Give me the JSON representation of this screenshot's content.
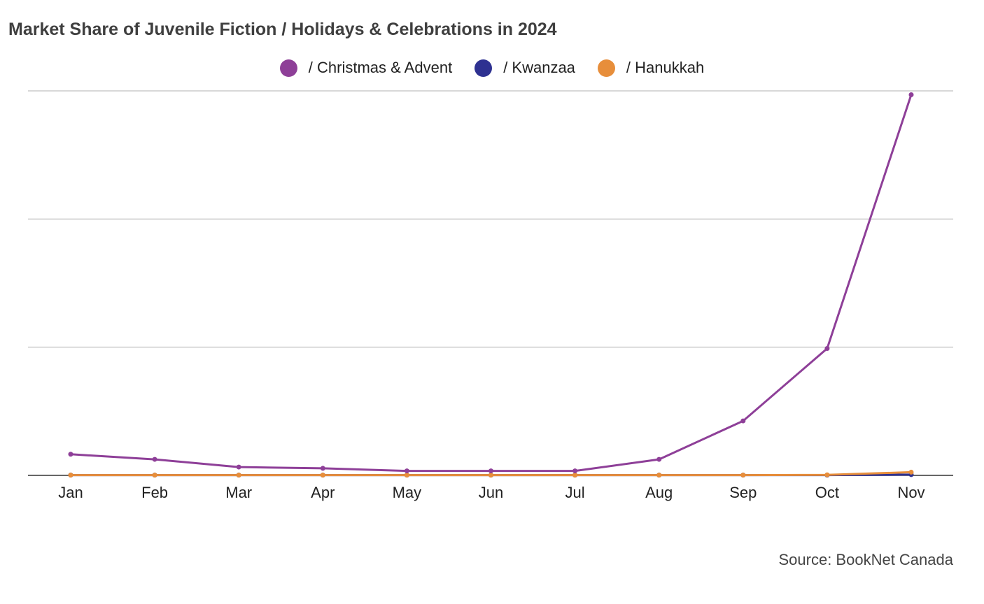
{
  "chart_data": {
    "type": "line",
    "title": "Market Share of Juvenile Fiction / Holidays & Celebrations in 2024",
    "categories": [
      "Jan",
      "Feb",
      "Mar",
      "Apr",
      "May",
      "Jun",
      "Jul",
      "Aug",
      "Sep",
      "Oct",
      "Nov"
    ],
    "series": [
      {
        "name": "/ Christmas & Advent",
        "color": "#8e3f98",
        "values": [
          0.165,
          0.125,
          0.065,
          0.055,
          0.035,
          0.035,
          0.035,
          0.125,
          0.425,
          0.99,
          2.97
        ]
      },
      {
        "name": "/ Kwanzaa",
        "color": "#2e3191",
        "values": [
          0.002,
          0.002,
          0.002,
          0.002,
          0.002,
          0.002,
          0.002,
          0.002,
          0.002,
          0.002,
          0.006
        ]
      },
      {
        "name": "/ Hanukkah",
        "color": "#e78e3b",
        "values": [
          0.002,
          0.002,
          0.002,
          0.002,
          0.002,
          0.002,
          0.002,
          0.002,
          0.002,
          0.004,
          0.025
        ]
      }
    ],
    "ylim": [
      0,
      3
    ],
    "gridlines": [
      1,
      2,
      3
    ],
    "y_tick_labels_shown": false,
    "grid": true,
    "legend_position": "top-center",
    "source": "Source: BookNet Canada"
  }
}
